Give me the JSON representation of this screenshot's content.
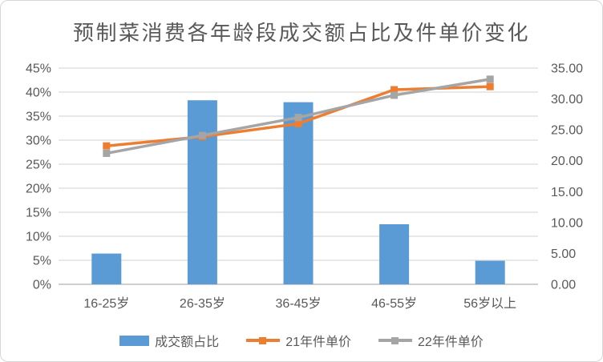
{
  "chart_data": {
    "type": "combo",
    "title": "预制菜消费各年龄段成交额占比及件单价变化",
    "categories": [
      "16-25岁",
      "26-35岁",
      "36-45岁",
      "46-55岁",
      "56岁以上"
    ],
    "series": [
      {
        "name": "成交额占比",
        "type": "bar",
        "axis": "left",
        "color": "#5B9BD5",
        "values": [
          6.4,
          38.3,
          37.9,
          12.5,
          4.9
        ]
      },
      {
        "name": "21年件单价",
        "type": "line",
        "axis": "right",
        "color": "#ED7D31",
        "values": [
          22.4,
          23.9,
          26.0,
          31.5,
          32.0
        ]
      },
      {
        "name": "22年件单价",
        "type": "line",
        "axis": "right",
        "color": "#A5A5A5",
        "values": [
          21.2,
          24.1,
          27.0,
          30.6,
          33.2
        ]
      }
    ],
    "left_axis": {
      "min": 0,
      "max": 45,
      "step": 5,
      "suffix": "%",
      "decimals": 0
    },
    "right_axis": {
      "min": 0,
      "max": 35,
      "step": 5,
      "suffix": "",
      "decimals": 2
    },
    "grid": "on",
    "legend_position": "bottom",
    "colors": {
      "gridline": "#D9D9D9",
      "axis_line": "#BFBFBF",
      "text": "#595959"
    }
  }
}
